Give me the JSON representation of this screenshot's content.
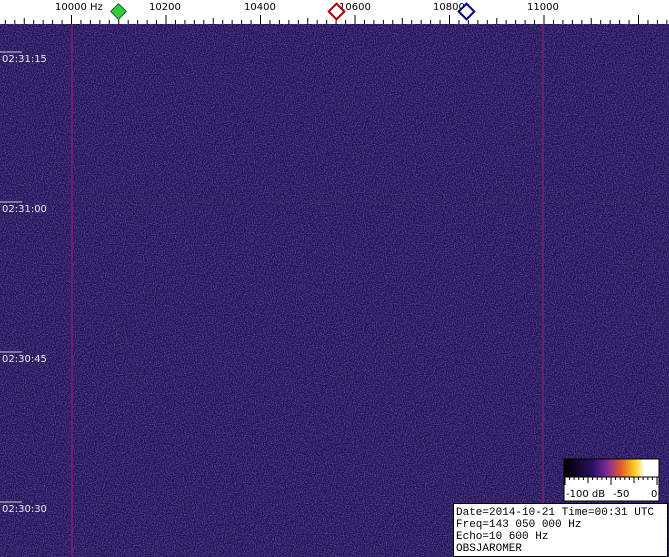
{
  "frequency_axis": {
    "labels": [
      "10000 Hz",
      "10200",
      "10400",
      "10600",
      "10800",
      "11000"
    ]
  },
  "time_axis": {
    "labels": [
      "02:31:15",
      "02:31:00",
      "02:30:45",
      "02:30:30"
    ]
  },
  "color_scale": {
    "labels": [
      "-100 dB",
      "-50",
      "0"
    ]
  },
  "info": {
    "lines": [
      "Date=2014-10-21 Time=00:31 UTC",
      "Freq=143 050 000 Hz",
      "Echo=10 600 Hz",
      "OBSJAROMER"
    ]
  }
}
